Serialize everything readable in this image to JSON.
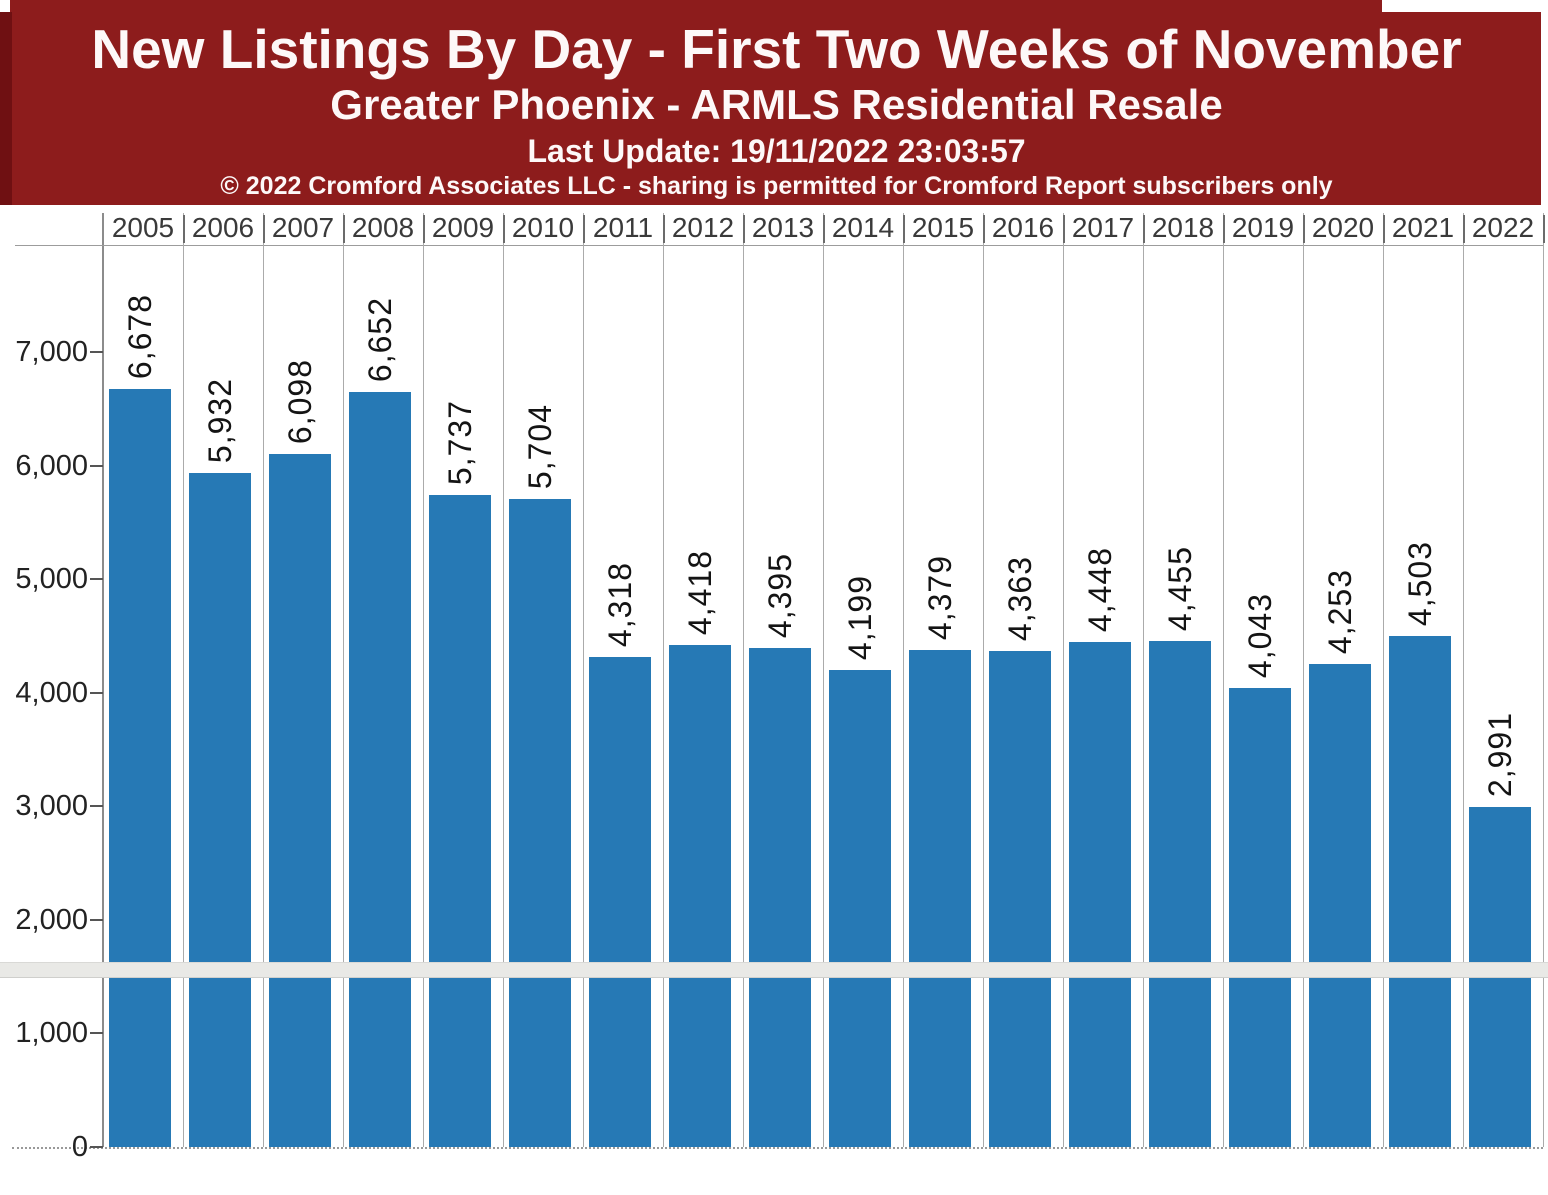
{
  "header": {
    "title": "New Listings By Day - First Two Weeks of November",
    "subtitle": "Greater Phoenix - ARMLS Residential Resale",
    "last_update": "Last Update: 19/11/2022 23:03:57",
    "copyright": "© 2022 Cromford Associates LLC - sharing is permitted for Cromford Report subscribers only",
    "colors": {
      "background": "#8d1c1c",
      "border": "#6f1012",
      "text": "#fdf8f8"
    }
  },
  "chart_data": {
    "type": "bar",
    "title": "New Listings By Day - First Two Weeks of November",
    "subtitle": "Greater Phoenix - ARMLS Residential Resale",
    "categories": [
      "2005",
      "2006",
      "2007",
      "2008",
      "2009",
      "2010",
      "2011",
      "2012",
      "2013",
      "2014",
      "2015",
      "2016",
      "2017",
      "2018",
      "2019",
      "2020",
      "2021",
      "2022"
    ],
    "values": [
      6678,
      5932,
      6098,
      6652,
      5737,
      5704,
      4318,
      4418,
      4395,
      4199,
      4379,
      4363,
      4448,
      4455,
      4043,
      4253,
      4503,
      2991
    ],
    "value_labels": [
      "6,678",
      "5,932",
      "6,098",
      "6,652",
      "5,737",
      "5,704",
      "4,318",
      "4,418",
      "4,395",
      "4,199",
      "4,379",
      "4,363",
      "4,448",
      "4,455",
      "4,043",
      "4,253",
      "4,503",
      "2,991"
    ],
    "xlabel": "",
    "ylabel": "",
    "ylim": [
      0,
      7000
    ],
    "ytick_interval": 1000,
    "yticks": [
      "0",
      "1,000",
      "2,000",
      "3,000",
      "4,000",
      "5,000",
      "6,000",
      "7,000"
    ],
    "bar_color": "#2679b5",
    "grid": "vertical-column-separators",
    "legend": "none",
    "value_label_rotation": "90-degrees-bottom-to-top"
  }
}
